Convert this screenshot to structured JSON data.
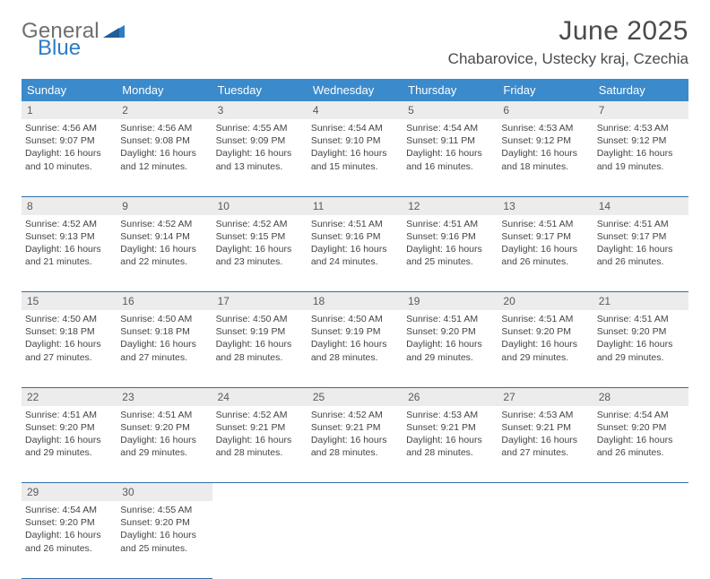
{
  "brand": {
    "part1": "General",
    "part2": "Blue",
    "color_general": "#6f6f71",
    "color_blue": "#2f7cc3"
  },
  "title": "June 2025",
  "location": "Chabarovice, Ustecky kraj, Czechia",
  "colors": {
    "header_bg": "#3b8acb",
    "header_text": "#ffffff",
    "daynum_bg": "#ececec",
    "rule": "#2f6fa8",
    "text": "#444444"
  },
  "weekdays": [
    "Sunday",
    "Monday",
    "Tuesday",
    "Wednesday",
    "Thursday",
    "Friday",
    "Saturday"
  ],
  "weeks": [
    [
      {
        "n": "1",
        "sr": "Sunrise: 4:56 AM",
        "ss": "Sunset: 9:07 PM",
        "dl": "Daylight: 16 hours and 10 minutes."
      },
      {
        "n": "2",
        "sr": "Sunrise: 4:56 AM",
        "ss": "Sunset: 9:08 PM",
        "dl": "Daylight: 16 hours and 12 minutes."
      },
      {
        "n": "3",
        "sr": "Sunrise: 4:55 AM",
        "ss": "Sunset: 9:09 PM",
        "dl": "Daylight: 16 hours and 13 minutes."
      },
      {
        "n": "4",
        "sr": "Sunrise: 4:54 AM",
        "ss": "Sunset: 9:10 PM",
        "dl": "Daylight: 16 hours and 15 minutes."
      },
      {
        "n": "5",
        "sr": "Sunrise: 4:54 AM",
        "ss": "Sunset: 9:11 PM",
        "dl": "Daylight: 16 hours and 16 minutes."
      },
      {
        "n": "6",
        "sr": "Sunrise: 4:53 AM",
        "ss": "Sunset: 9:12 PM",
        "dl": "Daylight: 16 hours and 18 minutes."
      },
      {
        "n": "7",
        "sr": "Sunrise: 4:53 AM",
        "ss": "Sunset: 9:12 PM",
        "dl": "Daylight: 16 hours and 19 minutes."
      }
    ],
    [
      {
        "n": "8",
        "sr": "Sunrise: 4:52 AM",
        "ss": "Sunset: 9:13 PM",
        "dl": "Daylight: 16 hours and 21 minutes."
      },
      {
        "n": "9",
        "sr": "Sunrise: 4:52 AM",
        "ss": "Sunset: 9:14 PM",
        "dl": "Daylight: 16 hours and 22 minutes."
      },
      {
        "n": "10",
        "sr": "Sunrise: 4:52 AM",
        "ss": "Sunset: 9:15 PM",
        "dl": "Daylight: 16 hours and 23 minutes."
      },
      {
        "n": "11",
        "sr": "Sunrise: 4:51 AM",
        "ss": "Sunset: 9:16 PM",
        "dl": "Daylight: 16 hours and 24 minutes."
      },
      {
        "n": "12",
        "sr": "Sunrise: 4:51 AM",
        "ss": "Sunset: 9:16 PM",
        "dl": "Daylight: 16 hours and 25 minutes."
      },
      {
        "n": "13",
        "sr": "Sunrise: 4:51 AM",
        "ss": "Sunset: 9:17 PM",
        "dl": "Daylight: 16 hours and 26 minutes."
      },
      {
        "n": "14",
        "sr": "Sunrise: 4:51 AM",
        "ss": "Sunset: 9:17 PM",
        "dl": "Daylight: 16 hours and 26 minutes."
      }
    ],
    [
      {
        "n": "15",
        "sr": "Sunrise: 4:50 AM",
        "ss": "Sunset: 9:18 PM",
        "dl": "Daylight: 16 hours and 27 minutes."
      },
      {
        "n": "16",
        "sr": "Sunrise: 4:50 AM",
        "ss": "Sunset: 9:18 PM",
        "dl": "Daylight: 16 hours and 27 minutes."
      },
      {
        "n": "17",
        "sr": "Sunrise: 4:50 AM",
        "ss": "Sunset: 9:19 PM",
        "dl": "Daylight: 16 hours and 28 minutes."
      },
      {
        "n": "18",
        "sr": "Sunrise: 4:50 AM",
        "ss": "Sunset: 9:19 PM",
        "dl": "Daylight: 16 hours and 28 minutes."
      },
      {
        "n": "19",
        "sr": "Sunrise: 4:51 AM",
        "ss": "Sunset: 9:20 PM",
        "dl": "Daylight: 16 hours and 29 minutes."
      },
      {
        "n": "20",
        "sr": "Sunrise: 4:51 AM",
        "ss": "Sunset: 9:20 PM",
        "dl": "Daylight: 16 hours and 29 minutes."
      },
      {
        "n": "21",
        "sr": "Sunrise: 4:51 AM",
        "ss": "Sunset: 9:20 PM",
        "dl": "Daylight: 16 hours and 29 minutes."
      }
    ],
    [
      {
        "n": "22",
        "sr": "Sunrise: 4:51 AM",
        "ss": "Sunset: 9:20 PM",
        "dl": "Daylight: 16 hours and 29 minutes."
      },
      {
        "n": "23",
        "sr": "Sunrise: 4:51 AM",
        "ss": "Sunset: 9:20 PM",
        "dl": "Daylight: 16 hours and 29 minutes."
      },
      {
        "n": "24",
        "sr": "Sunrise: 4:52 AM",
        "ss": "Sunset: 9:21 PM",
        "dl": "Daylight: 16 hours and 28 minutes."
      },
      {
        "n": "25",
        "sr": "Sunrise: 4:52 AM",
        "ss": "Sunset: 9:21 PM",
        "dl": "Daylight: 16 hours and 28 minutes."
      },
      {
        "n": "26",
        "sr": "Sunrise: 4:53 AM",
        "ss": "Sunset: 9:21 PM",
        "dl": "Daylight: 16 hours and 28 minutes."
      },
      {
        "n": "27",
        "sr": "Sunrise: 4:53 AM",
        "ss": "Sunset: 9:21 PM",
        "dl": "Daylight: 16 hours and 27 minutes."
      },
      {
        "n": "28",
        "sr": "Sunrise: 4:54 AM",
        "ss": "Sunset: 9:20 PM",
        "dl": "Daylight: 16 hours and 26 minutes."
      }
    ],
    [
      {
        "n": "29",
        "sr": "Sunrise: 4:54 AM",
        "ss": "Sunset: 9:20 PM",
        "dl": "Daylight: 16 hours and 26 minutes."
      },
      {
        "n": "30",
        "sr": "Sunrise: 4:55 AM",
        "ss": "Sunset: 9:20 PM",
        "dl": "Daylight: 16 hours and 25 minutes."
      },
      null,
      null,
      null,
      null,
      null
    ]
  ]
}
